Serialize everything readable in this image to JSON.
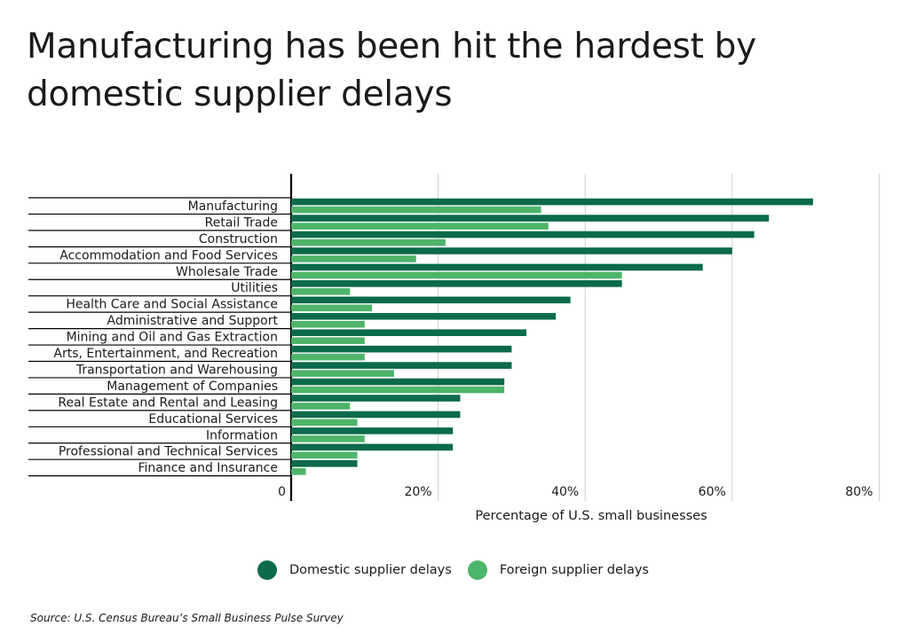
{
  "title": "Manufacturing has been hit the hardest by domestic supplier delays",
  "source": "Source:  U.S. Census Bureau’s Small Business Pulse Survey",
  "legend": {
    "domestic": "Domestic supplier delays",
    "foreign": "Foreign supplier delays"
  },
  "colors": {
    "domestic": "#0b6b4a",
    "foreign": "#4db56a",
    "grid": "#cfcfcf",
    "axis": "#000000"
  },
  "chart_data": {
    "type": "bar",
    "orientation": "horizontal",
    "title": "Manufacturing has been hit the hardest by domestic supplier delays",
    "xlabel": "Percentage of U.S. small businesses",
    "ylabel": "",
    "xlim": [
      0,
      80
    ],
    "xticks": [
      0,
      20,
      40,
      60,
      80
    ],
    "xtick_labels": [
      "0",
      "20%",
      "40%",
      "60%",
      "80%"
    ],
    "grid": "vertical",
    "legend_position": "bottom",
    "categories": [
      "Manufacturing",
      "Retail Trade",
      "Construction",
      "Accommodation and Food Services",
      "Wholesale Trade",
      "Utilities",
      "Health Care and Social Assistance",
      "Administrative and Support",
      "Mining and Oil and Gas Extraction",
      "Arts, Entertainment, and Recreation",
      "Transportation and Warehousing",
      "Management of Companies",
      "Real Estate and Rental and Leasing",
      "Educational Services",
      "Information",
      "Professional and Technical Services",
      "Finance and Insurance"
    ],
    "series": [
      {
        "name": "Domestic supplier delays",
        "values": [
          71,
          65,
          63,
          60,
          56,
          45,
          38,
          36,
          32,
          30,
          30,
          29,
          23,
          23,
          22,
          22,
          9
        ]
      },
      {
        "name": "Foreign supplier delays",
        "values": [
          34,
          35,
          21,
          17,
          45,
          8,
          11,
          10,
          10,
          10,
          14,
          29,
          8,
          9,
          10,
          9,
          2
        ]
      }
    ]
  }
}
